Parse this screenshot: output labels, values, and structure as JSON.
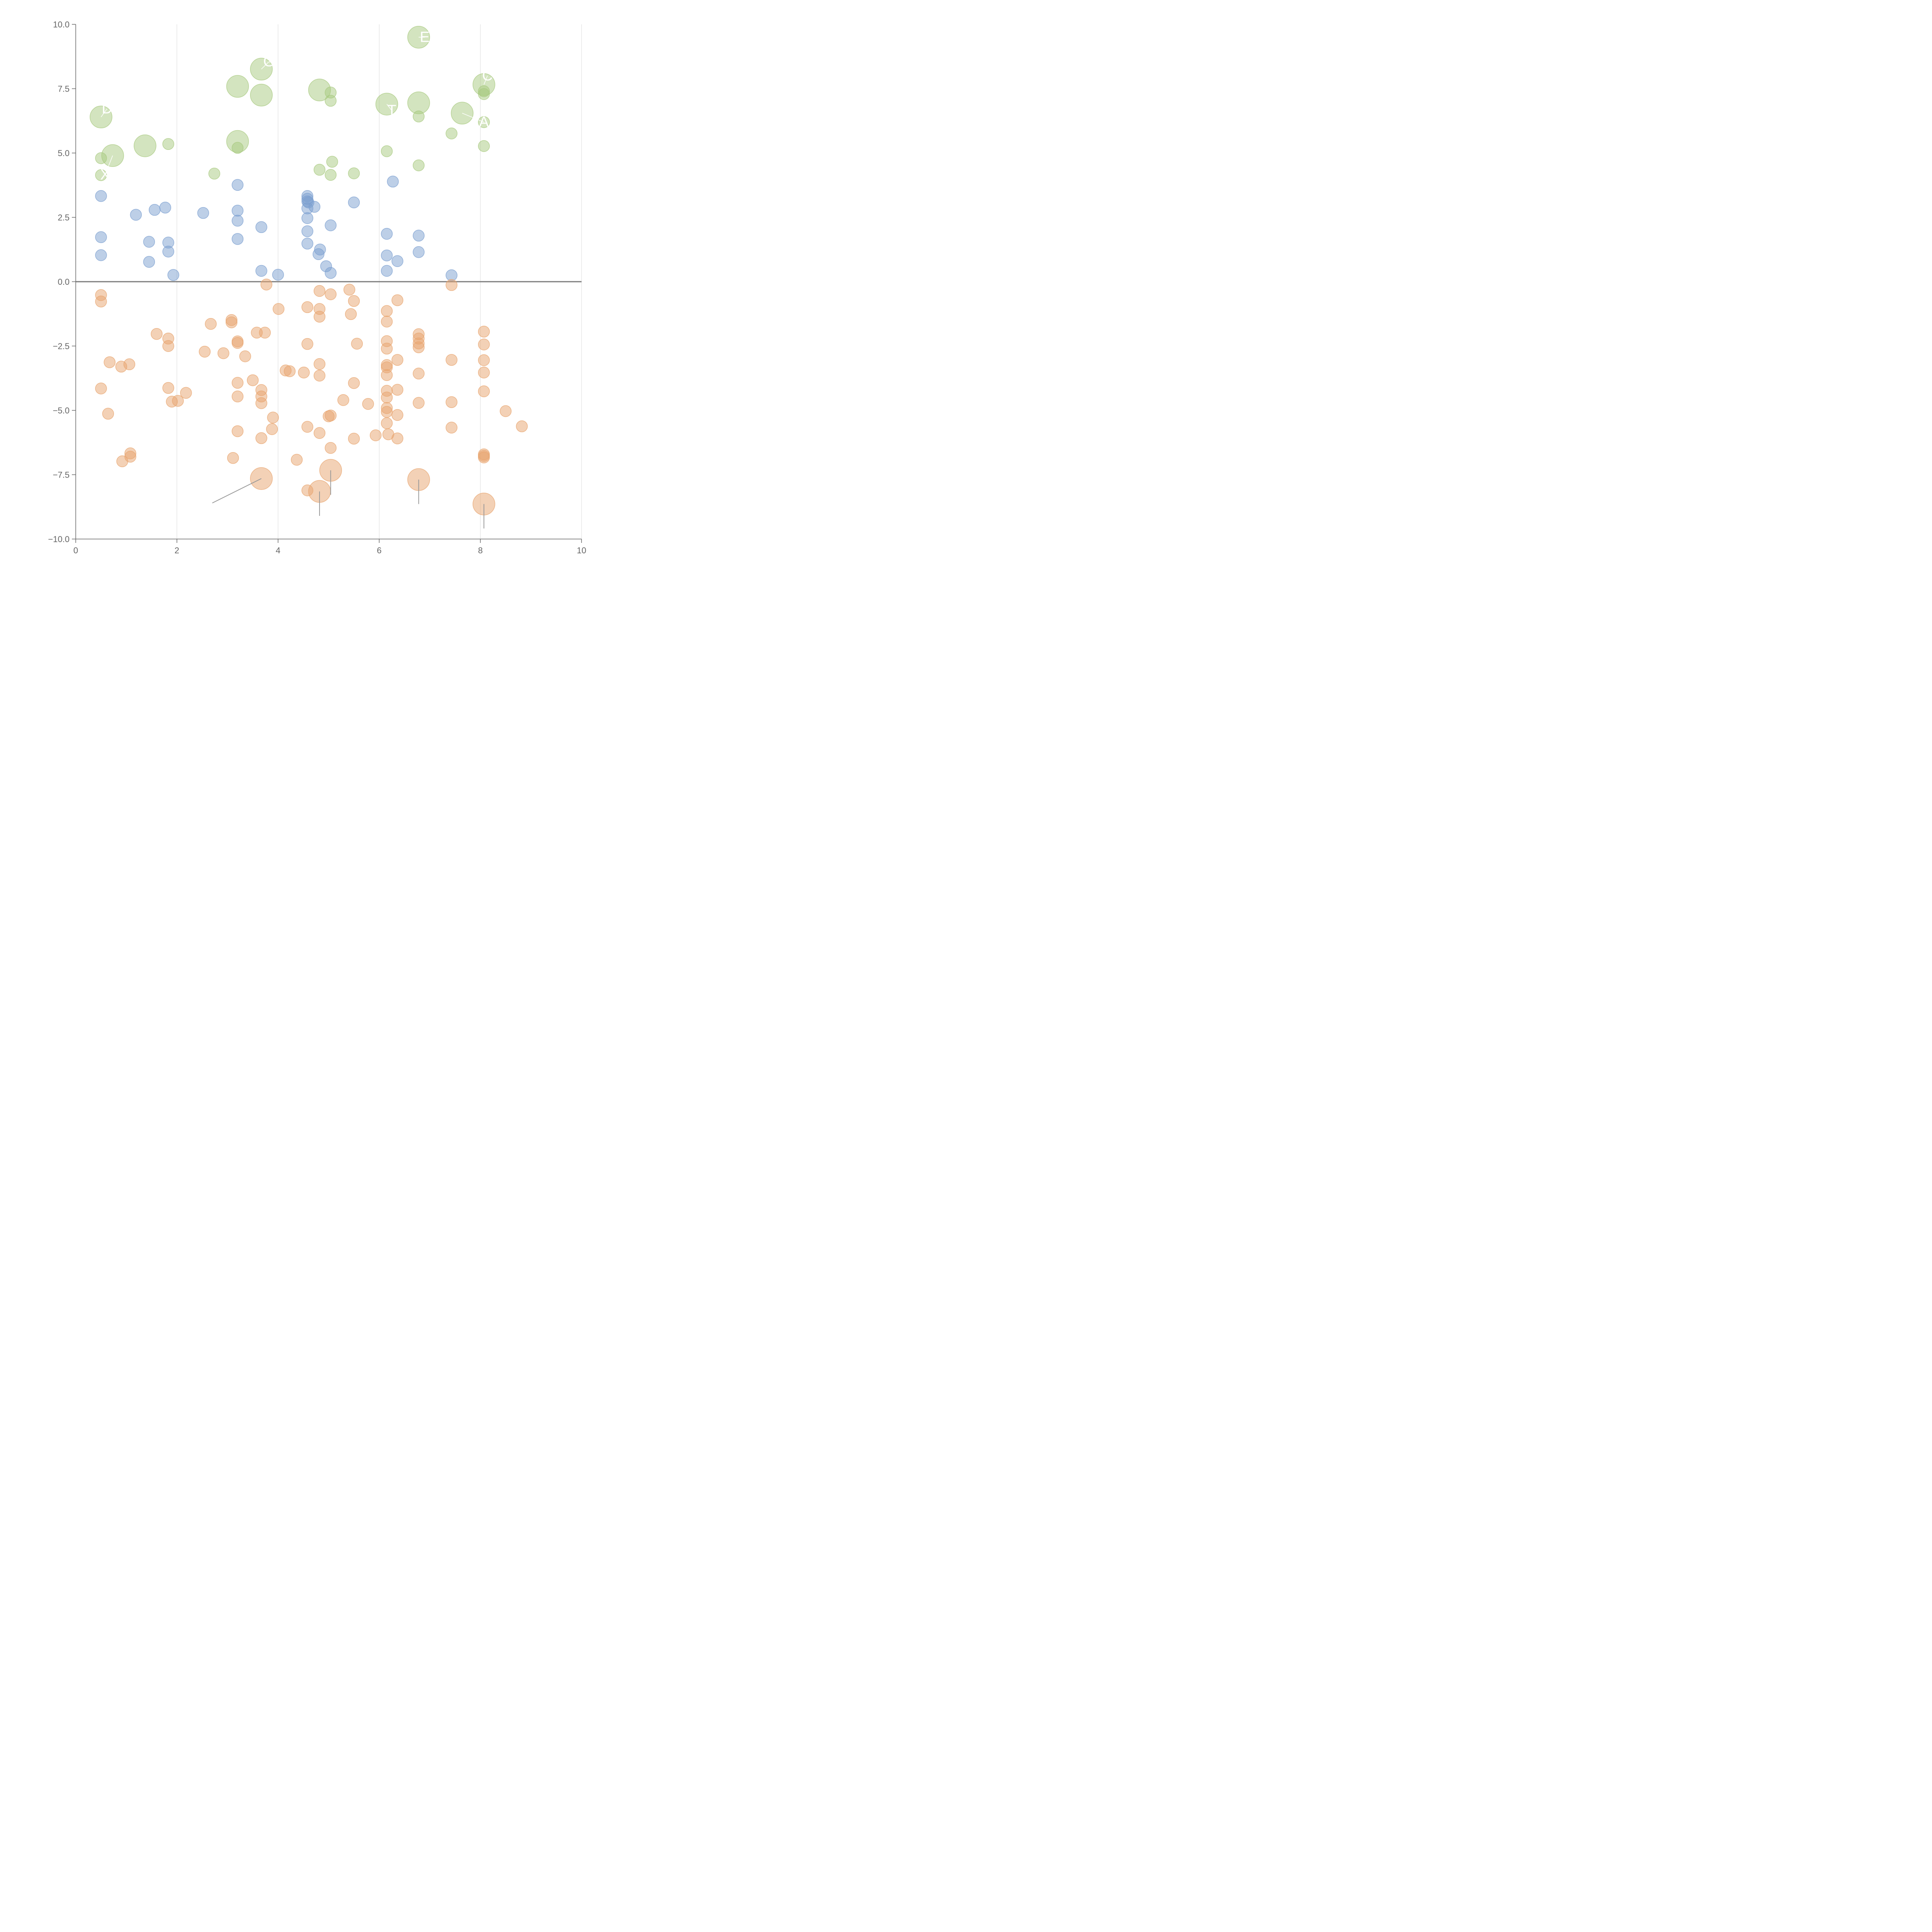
{
  "colors": {
    "positive_small": "#7b9fd0",
    "positive_large": "#a8c97f",
    "negative": "#e8a46e",
    "axis": "#666666",
    "grid": "#d9d9d9",
    "zero_line": "#7a7a7a",
    "callout_text": "#ffffff",
    "leader_line": "#999999"
  },
  "chart_data": {
    "type": "scatter",
    "title": "",
    "xlabel": "",
    "ylabel": "",
    "xlim": [
      0,
      10
    ],
    "ylim": [
      -10,
      10
    ],
    "x_ticks": [
      "0",
      "2",
      "4",
      "6",
      "8",
      "10"
    ],
    "y_ticks": [
      "10.0",
      "7.5",
      "5.0",
      "2.5",
      "0.0",
      "−2.5",
      "−5.0",
      "−7.5",
      "−10.0"
    ],
    "grid": "vertical lines at x ticks",
    "reference_line_y": 0,
    "marker_alpha": 0.5,
    "size_scale": "small = 1, large = 2",
    "series": [
      {
        "color_key": "positive_small",
        "points": [
          [
            0.5,
            3.33,
            1
          ],
          [
            0.5,
            1.73,
            1
          ],
          [
            0.5,
            1.03,
            1
          ],
          [
            1.19,
            2.6,
            1
          ],
          [
            1.56,
            2.79,
            1
          ],
          [
            1.77,
            2.88,
            1
          ],
          [
            1.45,
            1.55,
            1
          ],
          [
            1.45,
            0.77,
            1
          ],
          [
            1.83,
            1.52,
            1
          ],
          [
            1.83,
            1.17,
            1
          ],
          [
            1.93,
            0.26,
            1
          ],
          [
            2.52,
            2.67,
            1
          ],
          [
            3.2,
            3.76,
            1
          ],
          [
            3.2,
            2.76,
            1
          ],
          [
            3.2,
            2.37,
            1
          ],
          [
            3.2,
            1.66,
            1
          ],
          [
            3.67,
            2.12,
            1
          ],
          [
            3.67,
            0.42,
            1
          ],
          [
            4.0,
            0.27,
            1
          ],
          [
            4.58,
            3.33,
            1
          ],
          [
            4.58,
            3.22,
            1
          ],
          [
            4.58,
            3.12,
            1
          ],
          [
            4.6,
            3.08,
            1
          ],
          [
            4.58,
            2.85,
            1
          ],
          [
            4.72,
            2.91,
            1
          ],
          [
            4.58,
            2.47,
            1
          ],
          [
            4.58,
            1.96,
            1
          ],
          [
            4.58,
            1.48,
            1
          ],
          [
            4.83,
            1.25,
            1
          ],
          [
            4.8,
            1.07,
            1
          ],
          [
            4.95,
            0.6,
            1
          ],
          [
            5.04,
            0.34,
            1
          ],
          [
            5.04,
            2.19,
            1
          ],
          [
            5.5,
            3.08,
            1
          ],
          [
            6.27,
            3.89,
            1
          ],
          [
            6.15,
            1.86,
            1
          ],
          [
            6.15,
            1.02,
            1
          ],
          [
            6.15,
            0.42,
            1
          ],
          [
            6.36,
            0.8,
            1
          ],
          [
            6.78,
            1.79,
            1
          ],
          [
            6.78,
            1.15,
            1
          ],
          [
            7.43,
            0.25,
            1
          ]
        ]
      },
      {
        "color_key": "positive_large",
        "points": [
          [
            0.5,
            6.4,
            2
          ],
          [
            0.5,
            4.8,
            1
          ],
          [
            0.5,
            4.14,
            1
          ],
          [
            0.73,
            4.9,
            2
          ],
          [
            1.37,
            5.28,
            2
          ],
          [
            1.83,
            5.35,
            1
          ],
          [
            2.74,
            4.2,
            1
          ],
          [
            3.2,
            7.59,
            2
          ],
          [
            3.2,
            5.45,
            2
          ],
          [
            3.2,
            5.2,
            1
          ],
          [
            3.67,
            8.26,
            2
          ],
          [
            3.67,
            7.25,
            2
          ],
          [
            4.82,
            7.45,
            2
          ],
          [
            5.04,
            7.35,
            1
          ],
          [
            5.04,
            7.03,
            1
          ],
          [
            4.82,
            4.35,
            1
          ],
          [
            5.04,
            4.15,
            1
          ],
          [
            5.07,
            4.66,
            1
          ],
          [
            5.5,
            4.21,
            1
          ],
          [
            6.15,
            6.9,
            2
          ],
          [
            6.15,
            5.07,
            1
          ],
          [
            6.78,
            9.5,
            2
          ],
          [
            6.78,
            6.95,
            2
          ],
          [
            6.78,
            6.42,
            1
          ],
          [
            6.78,
            4.52,
            1
          ],
          [
            7.43,
            5.76,
            1
          ],
          [
            7.64,
            6.55,
            2
          ],
          [
            8.07,
            7.66,
            2
          ],
          [
            8.07,
            7.4,
            1
          ],
          [
            8.07,
            7.29,
            1
          ],
          [
            8.07,
            6.2,
            1
          ],
          [
            8.07,
            5.27,
            1
          ]
        ]
      },
      {
        "color_key": "negative",
        "points": [
          [
            0.5,
            -0.52,
            1
          ],
          [
            0.5,
            -0.77,
            1
          ],
          [
            0.5,
            -4.15,
            1
          ],
          [
            0.64,
            -5.13,
            1
          ],
          [
            0.67,
            -3.13,
            1
          ],
          [
            0.9,
            -3.3,
            1
          ],
          [
            1.06,
            -3.21,
            1
          ],
          [
            1.08,
            -6.67,
            1
          ],
          [
            1.08,
            -6.8,
            1
          ],
          [
            0.92,
            -6.98,
            1
          ],
          [
            1.6,
            -2.03,
            1
          ],
          [
            1.83,
            -2.21,
            1
          ],
          [
            1.83,
            -2.5,
            1
          ],
          [
            1.83,
            -4.13,
            1
          ],
          [
            1.9,
            -4.66,
            1
          ],
          [
            2.02,
            -4.63,
            1
          ],
          [
            2.18,
            -4.32,
            1
          ],
          [
            2.55,
            -2.72,
            1
          ],
          [
            2.67,
            -1.64,
            1
          ],
          [
            2.92,
            -2.78,
            1
          ],
          [
            3.08,
            -1.49,
            1
          ],
          [
            3.08,
            -1.58,
            1
          ],
          [
            3.11,
            -6.85,
            1
          ],
          [
            3.2,
            -2.32,
            1
          ],
          [
            3.2,
            -2.38,
            1
          ],
          [
            3.2,
            -3.93,
            1
          ],
          [
            3.2,
            -4.46,
            1
          ],
          [
            3.2,
            -5.81,
            1
          ],
          [
            3.35,
            -2.9,
            1
          ],
          [
            3.5,
            -3.83,
            1
          ],
          [
            3.58,
            -1.98,
            1
          ],
          [
            3.67,
            -4.21,
            1
          ],
          [
            3.67,
            -4.46,
            1
          ],
          [
            3.67,
            -4.72,
            1
          ],
          [
            3.67,
            -6.08,
            1
          ],
          [
            3.67,
            -7.65,
            2
          ],
          [
            3.74,
            -1.98,
            1
          ],
          [
            3.77,
            -0.11,
            1
          ],
          [
            3.9,
            -5.28,
            1
          ],
          [
            3.88,
            -5.73,
            1
          ],
          [
            4.01,
            -1.06,
            1
          ],
          [
            4.15,
            -3.45,
            1
          ],
          [
            4.23,
            -3.48,
            1
          ],
          [
            4.37,
            -6.92,
            1
          ],
          [
            4.51,
            -3.53,
            1
          ],
          [
            4.58,
            -0.99,
            1
          ],
          [
            4.58,
            -2.42,
            1
          ],
          [
            4.58,
            -5.64,
            1
          ],
          [
            4.58,
            -8.11,
            1
          ],
          [
            4.82,
            -0.36,
            1
          ],
          [
            4.82,
            -1.06,
            1
          ],
          [
            4.82,
            -1.36,
            1
          ],
          [
            4.82,
            -3.2,
            1
          ],
          [
            4.82,
            -3.65,
            1
          ],
          [
            4.82,
            -5.88,
            1
          ],
          [
            4.82,
            -8.15,
            2
          ],
          [
            5.0,
            -5.23,
            1
          ],
          [
            5.04,
            -5.2,
            1
          ],
          [
            5.04,
            -0.49,
            1
          ],
          [
            5.04,
            -6.46,
            1
          ],
          [
            5.04,
            -7.33,
            2
          ],
          [
            5.29,
            -4.6,
            1
          ],
          [
            5.41,
            -0.31,
            1
          ],
          [
            5.44,
            -1.26,
            1
          ],
          [
            5.5,
            -0.75,
            1
          ],
          [
            5.5,
            -3.94,
            1
          ],
          [
            5.5,
            -6.1,
            1
          ],
          [
            5.56,
            -2.41,
            1
          ],
          [
            5.78,
            -4.75,
            1
          ],
          [
            5.93,
            -5.97,
            1
          ],
          [
            6.15,
            -1.14,
            1
          ],
          [
            6.15,
            -1.55,
            1
          ],
          [
            6.15,
            -2.31,
            1
          ],
          [
            6.15,
            -2.6,
            1
          ],
          [
            6.15,
            -3.24,
            1
          ],
          [
            6.15,
            -3.33,
            1
          ],
          [
            6.15,
            -3.63,
            1
          ],
          [
            6.15,
            -4.24,
            1
          ],
          [
            6.15,
            -4.5,
            1
          ],
          [
            6.15,
            -4.91,
            1
          ],
          [
            6.15,
            -5.06,
            1
          ],
          [
            6.15,
            -5.5,
            1
          ],
          [
            6.18,
            -5.93,
            1
          ],
          [
            6.36,
            -0.72,
            1
          ],
          [
            6.36,
            -3.04,
            1
          ],
          [
            6.36,
            -4.2,
            1
          ],
          [
            6.36,
            -5.18,
            1
          ],
          [
            6.36,
            -6.09,
            1
          ],
          [
            6.78,
            -2.04,
            1
          ],
          [
            6.78,
            -2.21,
            1
          ],
          [
            6.78,
            -2.4,
            1
          ],
          [
            6.78,
            -2.55,
            1
          ],
          [
            6.78,
            -3.57,
            1
          ],
          [
            6.78,
            -4.71,
            1
          ],
          [
            6.78,
            -7.69,
            2
          ],
          [
            7.43,
            -0.13,
            1
          ],
          [
            7.43,
            -3.04,
            1
          ],
          [
            7.43,
            -4.68,
            1
          ],
          [
            7.43,
            -5.67,
            1
          ],
          [
            8.07,
            -1.94,
            1
          ],
          [
            8.07,
            -2.44,
            1
          ],
          [
            8.07,
            -3.05,
            1
          ],
          [
            8.07,
            -3.53,
            1
          ],
          [
            8.07,
            -4.26,
            1
          ],
          [
            8.07,
            -6.71,
            1
          ],
          [
            8.07,
            -6.77,
            1
          ],
          [
            8.07,
            -6.83,
            1
          ],
          [
            8.07,
            -8.64,
            2
          ],
          [
            8.5,
            -5.03,
            1
          ],
          [
            8.82,
            -5.62,
            1
          ]
        ]
      }
    ],
    "annotations": [
      {
        "text": "",
        "at": [
          3.67,
          -7.65
        ],
        "to": [
          2.7,
          -8.6
        ],
        "color_key": "leader_line"
      },
      {
        "text": "",
        "at": [
          4.82,
          -8.15
        ],
        "to": [
          4.82,
          -9.1
        ],
        "color_key": "leader_line"
      },
      {
        "text": "",
        "at": [
          5.04,
          -7.33
        ],
        "to": [
          5.04,
          -8.28
        ],
        "color_key": "leader_line"
      },
      {
        "text": "",
        "at": [
          6.78,
          -7.69
        ],
        "to": [
          6.78,
          -8.64
        ],
        "color_key": "leader_line"
      },
      {
        "text": "",
        "at": [
          8.07,
          -8.64
        ],
        "to": [
          8.07,
          -9.59
        ],
        "color_key": "leader_line"
      },
      {
        "text": "E",
        "at": [
          6.78,
          9.5
        ],
        "to": [
          6.9,
          9.5
        ],
        "color_key": "callout_text"
      },
      {
        "text": "A",
        "at": [
          7.64,
          6.55
        ],
        "to": [
          8.07,
          6.2
        ],
        "color_key": "callout_text"
      },
      {
        "text": "C",
        "at": [
          8.07,
          7.66
        ],
        "to": [
          8.14,
          8.0
        ],
        "color_key": "callout_text"
      },
      {
        "text": "G",
        "at": [
          3.67,
          8.26
        ],
        "to": [
          3.82,
          8.55
        ],
        "color_key": "callout_text"
      },
      {
        "text": "D",
        "at": [
          0.5,
          6.4
        ],
        "to": [
          0.62,
          6.72
        ],
        "color_key": "callout_text"
      },
      {
        "text": "X",
        "at": [
          0.73,
          4.9
        ],
        "to": [
          0.58,
          4.15
        ],
        "color_key": "callout_text"
      },
      {
        "text": "T",
        "at": [
          6.15,
          6.9
        ],
        "to": [
          6.25,
          6.65
        ],
        "color_key": "callout_text"
      }
    ]
  }
}
